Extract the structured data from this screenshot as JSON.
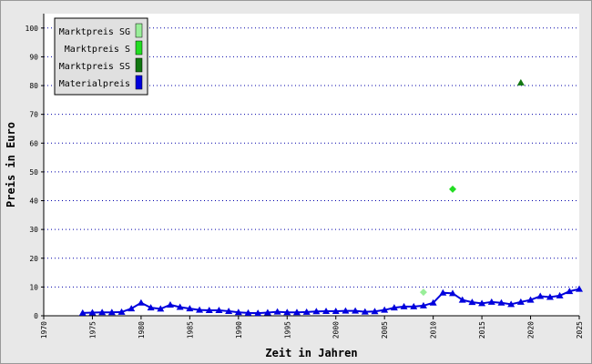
{
  "chart_data": {
    "type": "line",
    "ylabel": "Preis in Euro",
    "xlabel": "Zeit in Jahren",
    "xlim": [
      1970,
      2025
    ],
    "xticks": [
      1970,
      1975,
      1980,
      1985,
      1990,
      1995,
      2000,
      2005,
      2010,
      2015,
      2020,
      2025
    ],
    "ylim": [
      0,
      105
    ],
    "yticks": [
      0,
      10,
      20,
      30,
      40,
      50,
      60,
      70,
      80,
      90,
      100
    ],
    "grid": true,
    "legend": "top-left",
    "series": [
      {
        "name": "Marktpreis SG",
        "color": "#99ee99",
        "marker": "diamond",
        "x": [
          2009
        ],
        "values": [
          8.2
        ]
      },
      {
        "name": "Marktpreis S",
        "color": "#22dd22",
        "marker": "diamond",
        "x": [
          2012
        ],
        "values": [
          44
        ]
      },
      {
        "name": "Marktpreis SS",
        "color": "#117711",
        "marker": "triangle",
        "x": [
          2019
        ],
        "values": [
          81
        ]
      },
      {
        "name": "Materialpreis",
        "color": "#0000dd",
        "marker": "triangle",
        "x": [
          1974,
          1975,
          1976,
          1977,
          1978,
          1979,
          1980,
          1981,
          1982,
          1983,
          1984,
          1985,
          1986,
          1987,
          1988,
          1989,
          1990,
          1991,
          1992,
          1993,
          1994,
          1995,
          1996,
          1997,
          1998,
          1999,
          2000,
          2001,
          2002,
          2003,
          2004,
          2005,
          2006,
          2007,
          2008,
          2009,
          2010,
          2011,
          2012,
          2013,
          2014,
          2015,
          2016,
          2017,
          2018,
          2019,
          2020,
          2021,
          2022,
          2023,
          2024,
          2025
        ],
        "values": [
          1.0,
          1.1,
          1.2,
          1.2,
          1.3,
          2.5,
          4.5,
          2.8,
          2.4,
          3.8,
          3.0,
          2.5,
          2.0,
          1.9,
          1.9,
          1.6,
          1.2,
          1.0,
          0.9,
          1.1,
          1.4,
          1.2,
          1.2,
          1.3,
          1.5,
          1.6,
          1.6,
          1.7,
          1.7,
          1.4,
          1.5,
          2.0,
          2.8,
          3.2,
          3.2,
          3.5,
          4.5,
          8.0,
          7.8,
          5.5,
          4.7,
          4.3,
          4.8,
          4.5,
          4.0,
          4.8,
          5.5,
          6.8,
          6.5,
          7.0,
          8.5,
          9.3
        ]
      }
    ]
  }
}
